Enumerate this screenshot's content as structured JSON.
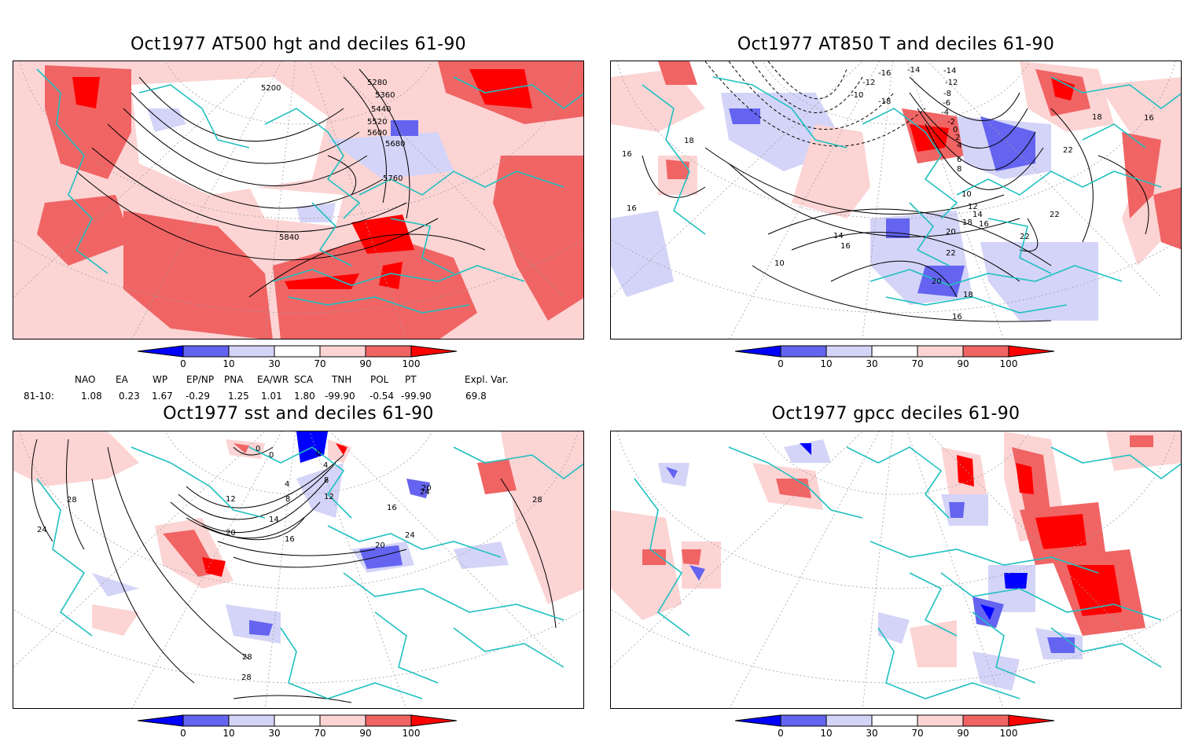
{
  "panels": [
    {
      "id": "p1",
      "title": "Oct1977 AT500 hgt and deciles 61-90",
      "contour_labels": [
        "5200",
        "5280",
        "5360",
        "5440",
        "5520",
        "5600",
        "5680",
        "5760",
        "5840"
      ]
    },
    {
      "id": "p2",
      "title": "Oct1977 AT850 T and deciles 61-90",
      "contour_labels": [
        "-14",
        "-16",
        "-12",
        "-10",
        "-18",
        "-14",
        "-12",
        "-8",
        "-6",
        "-4",
        "-2",
        "0",
        "2",
        "4",
        "6",
        "8",
        "10",
        "12",
        "14",
        "16",
        "18",
        "20",
        "22",
        "22",
        "22",
        "22",
        "16",
        "18",
        "16",
        "16",
        "18",
        "20",
        "18",
        "16",
        "14",
        "16",
        "10"
      ]
    },
    {
      "id": "p3",
      "title": "Oct1977 sst and deciles 61-90",
      "contour_labels": [
        "24",
        "28",
        "0",
        "0",
        "0",
        "4",
        "8",
        "4",
        "8",
        "12",
        "14",
        "16",
        "20",
        "20",
        "24",
        "28",
        "28",
        "12",
        "16",
        "20",
        "24",
        "28"
      ]
    },
    {
      "id": "p4",
      "title": "Oct1977 gpcc deciles 61-90",
      "contour_labels": []
    }
  ],
  "colorbar": {
    "ticks": [
      "0",
      "10",
      "30",
      "70",
      "90",
      "100"
    ],
    "colors": {
      "deep_blue": "#0000ff",
      "mid_blue": "#6464f0",
      "light_blue": "#d4d4f8",
      "white": "#ffffff",
      "light_red": "#fcd4d4",
      "mid_red": "#f06464",
      "deep_red": "#ff0000"
    }
  },
  "indices": {
    "headers": [
      "NAO",
      "EA",
      "WP",
      "EP/NP",
      "PNA",
      "EA/WR",
      "SCA",
      "TNH",
      "POL",
      "PT",
      "Expl. Var."
    ],
    "row_label": "81-10:",
    "values": [
      "1.08",
      "0.23",
      "1.67",
      "-0.29",
      "1.25",
      "1.01",
      "1.80",
      "-99.90",
      "-0.54",
      "-99.90",
      "69.8"
    ]
  },
  "style_colors": {
    "coast": "#20c0c0",
    "contour": "#000000",
    "grid": "#a0a0a0"
  }
}
